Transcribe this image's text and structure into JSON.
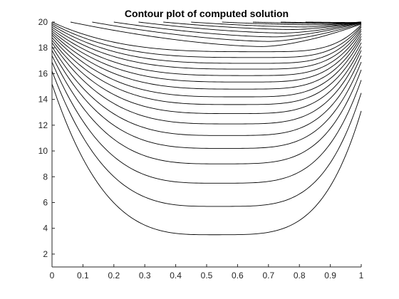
{
  "chart_data": {
    "type": "contour",
    "title": "Contour plot of computed solution",
    "xlabel": "",
    "ylabel": "",
    "xlim": [
      0,
      1
    ],
    "ylim": [
      1,
      20
    ],
    "xticks": [
      0,
      0.1,
      0.2,
      0.3,
      0.4,
      0.5,
      0.6,
      0.7,
      0.8,
      0.9,
      1
    ],
    "xtick_labels": [
      "0",
      "0.1",
      "0.2",
      "0.3",
      "0.4",
      "0.5",
      "0.6",
      "0.7",
      "0.8",
      "0.9",
      "1"
    ],
    "yticks": [
      2,
      4,
      6,
      8,
      10,
      12,
      14,
      16,
      18,
      20
    ],
    "ytick_labels": [
      "2",
      "4",
      "6",
      "8",
      "10",
      "12",
      "14",
      "16",
      "18",
      "20"
    ],
    "grid": false,
    "line_color": "#000000",
    "contour_lines": [
      {
        "left": 15.2,
        "right": 13.1,
        "min_y": 3.5,
        "min_x": 0.52
      },
      {
        "left": 16.2,
        "right": 14.5,
        "min_y": 5.7,
        "min_x": 0.53
      },
      {
        "left": 16.9,
        "right": 15.5,
        "min_y": 7.5,
        "min_x": 0.53
      },
      {
        "left": 17.4,
        "right": 16.3,
        "min_y": 9.0,
        "min_x": 0.54
      },
      {
        "left": 17.8,
        "right": 16.9,
        "min_y": 10.2,
        "min_x": 0.55
      },
      {
        "left": 18.1,
        "right": 17.4,
        "min_y": 11.2,
        "min_x": 0.56
      },
      {
        "left": 18.4,
        "right": 17.8,
        "min_y": 12.1,
        "min_x": 0.57
      },
      {
        "left": 18.6,
        "right": 18.1,
        "min_y": 12.9,
        "min_x": 0.58
      },
      {
        "left": 18.8,
        "right": 18.4,
        "min_y": 13.6,
        "min_x": 0.59
      },
      {
        "left": 19.0,
        "right": 18.7,
        "min_y": 14.2,
        "min_x": 0.6
      },
      {
        "left": 19.15,
        "right": 18.9,
        "min_y": 14.8,
        "min_x": 0.61
      },
      {
        "left": 19.3,
        "right": 19.1,
        "min_y": 15.35,
        "min_x": 0.62
      },
      {
        "left": 19.45,
        "right": 19.3,
        "min_y": 15.85,
        "min_x": 0.63
      },
      {
        "left": 19.6,
        "right": 19.45,
        "min_y": 16.35,
        "min_x": 0.64
      },
      {
        "left": 19.75,
        "right": 19.6,
        "min_y": 16.8,
        "min_x": 0.65
      },
      {
        "left": 19.88,
        "right": 19.7,
        "min_y": 17.25,
        "min_x": 0.66
      },
      {
        "left": 20.0,
        "right": 19.8,
        "min_y": 17.7,
        "min_x": 0.67
      },
      {
        "start_x": 0.06,
        "right": 19.85,
        "min_y": 18.1,
        "min_x": 0.68
      },
      {
        "start_x": 0.13,
        "right": 19.9,
        "min_y": 18.5,
        "min_x": 0.7
      },
      {
        "start_x": 0.2,
        "right": 19.95,
        "min_y": 18.85,
        "min_x": 0.72
      },
      {
        "start_x": 0.28,
        "right": 19.97,
        "min_y": 19.15,
        "min_x": 0.75
      },
      {
        "start_x": 0.36,
        "right": 19.98,
        "min_y": 19.42,
        "min_x": 0.78
      },
      {
        "start_x": 0.45,
        "right": 19.99,
        "min_y": 19.62,
        "min_x": 0.82
      },
      {
        "start_x": 0.55,
        "right": 20.0,
        "min_y": 19.78,
        "min_x": 0.86
      },
      {
        "start_x": 0.65,
        "right": 20.0,
        "min_y": 19.88,
        "min_x": 0.9
      },
      {
        "start_x": 0.74,
        "right": 20.0,
        "min_y": 19.94,
        "min_x": 0.94
      },
      {
        "start_x": 0.82,
        "right": 20.0,
        "min_y": 19.97,
        "min_x": 0.97
      }
    ]
  }
}
